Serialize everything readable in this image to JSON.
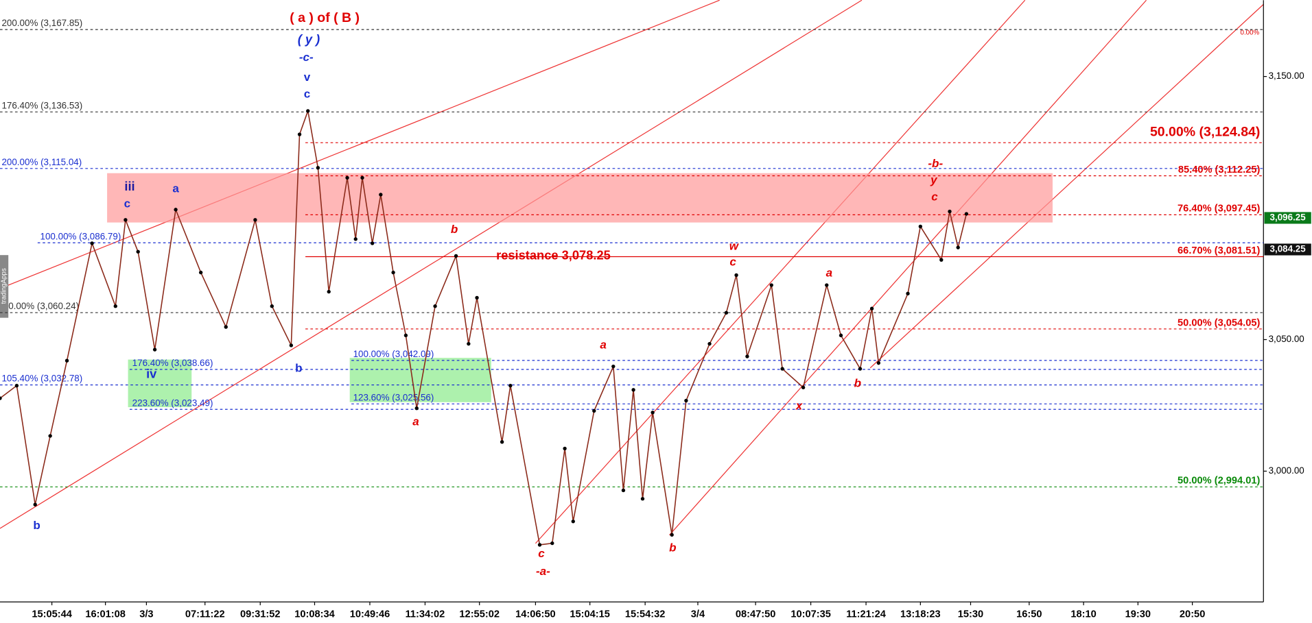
{
  "chart_data": {
    "type": "line",
    "sidebar_text": "tradingApps",
    "series": [
      {
        "name": "Price",
        "color": "#8b2a1a",
        "x": [
          0,
          2,
          4.2,
          6,
          8,
          11,
          13.8,
          15,
          16.5,
          18.5,
          21,
          24,
          27,
          30.5,
          32.5,
          34.8,
          35.8,
          36.8,
          38,
          39.3,
          41.5,
          42.5,
          43.3,
          44.5,
          45.5,
          47,
          48.5,
          49.8,
          52,
          54.5,
          56,
          57,
          60,
          61,
          64.5,
          66,
          67.5,
          68.5,
          71,
          73.3,
          74.5,
          75.7,
          76.8,
          78,
          80.3,
          82,
          84.8,
          86.8,
          88,
          89.3,
          92.2,
          93.5,
          96,
          98.8,
          100.5,
          102.8,
          104.2,
          105,
          108.5,
          110,
          112.5,
          113.5,
          114.5,
          115.5
        ],
        "values": [
          3027.7,
          3032.5,
          2987.3,
          3013.4,
          3042,
          3086.6,
          3062.7,
          3095.5,
          3083.4,
          3046.2,
          3099.4,
          3075.5,
          3054.8,
          3095.5,
          3062.7,
          3047.8,
          3128,
          3136.9,
          3115.3,
          3068.2,
          3111.5,
          3088.2,
          3111.5,
          3086.6,
          3105.1,
          3075.5,
          3051.6,
          3023.9,
          3062.7,
          3081.8,
          3048.4,
          3065.9,
          3011.1,
          3032.5,
          2972,
          2972.6,
          3008.6,
          2980.9,
          3022.9,
          3039.8,
          2992.7,
          3030.9,
          2989.5,
          3022.3,
          2975.8,
          3026.8,
          3048.4,
          3060.2,
          3074.5,
          3043.6,
          3070.7,
          3038.9,
          3031.8,
          3070.7,
          3051.6,
          3038.9,
          3061.8,
          3041.1,
          3067.5,
          3093,
          3080.3,
          3098.7,
          3085,
          3097.8
        ]
      }
    ],
    "xlim": [
      0,
      151
    ],
    "xticks": [
      {
        "value": 6.2,
        "label": "15:05:44"
      },
      {
        "value": 12.6,
        "label": "16:01:08"
      },
      {
        "value": 17.5,
        "label": "3/3"
      },
      {
        "value": 24.5,
        "label": "07:11:22"
      },
      {
        "value": 31.1,
        "label": "09:31:52"
      },
      {
        "value": 37.6,
        "label": "10:08:34"
      },
      {
        "value": 44.2,
        "label": "10:49:46"
      },
      {
        "value": 50.8,
        "label": "11:34:02"
      },
      {
        "value": 57.3,
        "label": "12:55:02"
      },
      {
        "value": 64,
        "label": "14:06:50"
      },
      {
        "value": 70.5,
        "label": "15:04:15"
      },
      {
        "value": 77.1,
        "label": "15:54:32"
      },
      {
        "value": 83.4,
        "label": "3/4"
      },
      {
        "value": 90.3,
        "label": "08:47:50"
      },
      {
        "value": 96.9,
        "label": "10:07:35"
      },
      {
        "value": 103.5,
        "label": "11:21:24"
      },
      {
        "value": 110,
        "label": "13:18:23"
      },
      {
        "value": 116,
        "label": "15:30"
      },
      {
        "value": 123,
        "label": "16:50"
      },
      {
        "value": 129.5,
        "label": "18:10"
      },
      {
        "value": 136,
        "label": "19:30"
      },
      {
        "value": 142.5,
        "label": "20:50"
      }
    ],
    "ylim": [
      2950.3,
      3179
    ],
    "yticks": [
      {
        "value": 3000,
        "label": "3,000.00"
      },
      {
        "value": 3050,
        "label": "3,050.00"
      },
      {
        "value": 3150,
        "label": "3,150.00"
      }
    ],
    "levels": [
      {
        "label": "200.00% (3,167.85)",
        "value": 3167.85,
        "color": "#333333"
      },
      {
        "label": "176.40% (3,136.53)",
        "value": 3136.53,
        "color": "#333333"
      },
      {
        "label": "0.00% (3,060.24)",
        "value": 3060.24,
        "color": "#333333"
      },
      {
        "label": "200.00% (3,115.04)",
        "value": 3115.04,
        "color": "#1a2fd0"
      },
      {
        "label": "100.00% (3,086.79)",
        "value": 3086.79,
        "color": "#1a2fd0"
      },
      {
        "label": "105.40% (3,032.78)",
        "value": 3032.78,
        "color": "#1a2fd0"
      },
      {
        "label": "176.40% (3,038.66)",
        "value": 3038.66,
        "color": "#1a2fd0"
      },
      {
        "label": "223.60% (3,023.49)",
        "value": 3023.49,
        "color": "#1a2fd0"
      },
      {
        "label": "100.00% (3,042.09)",
        "value": 3042.09,
        "color": "#1a2fd0"
      },
      {
        "label": "123.60% (3,025.56)",
        "value": 3025.56,
        "color": "#1a2fd0"
      },
      {
        "label": "50.00% (3,124.84)",
        "value": 3124.84,
        "color": "#e00000"
      },
      {
        "label": "85.40% (3,112.25)",
        "value": 3112.25,
        "color": "#e00000"
      },
      {
        "label": "76.40% (3,097.45)",
        "value": 3097.45,
        "color": "#e00000"
      },
      {
        "label": "66.70% (3,081.51)",
        "value": 3081.51,
        "color": "#e00000"
      },
      {
        "label": "50.00% (3,054.05)",
        "value": 3054.05,
        "color": "#e00000"
      },
      {
        "label": "50.00% (2,994.01)",
        "value": 2994.01,
        "color": "#0a8a0a"
      }
    ],
    "resistance": {
      "label": "resistance 3,078.25",
      "value": 3078.25
    },
    "corner_note": "0.00%",
    "price_tags": [
      {
        "value": 3096.25,
        "label": "3,096.25",
        "color": "#0a7a1a"
      },
      {
        "value": 3084.25,
        "label": "3,084.25",
        "color": "#111111"
      }
    ],
    "wave_labels": [
      {
        "text": "( a ) of ( B )",
        "color": "#e00000"
      },
      {
        "text": "( y )",
        "color": "#1a2fd0"
      },
      {
        "text": "-c-",
        "color": "#1a2fd0"
      },
      {
        "text": "v",
        "color": "#1a2fd0"
      },
      {
        "text": "c",
        "color": "#1a2fd0"
      },
      {
        "text": "iii",
        "color": "#1a1aa0"
      },
      {
        "text": "c",
        "color": "#1a2fd0"
      },
      {
        "text": "a",
        "color": "#1a2fd0"
      },
      {
        "text": "iv",
        "color": "#1a2fd0"
      },
      {
        "text": "b",
        "color": "#1a2fd0"
      },
      {
        "text": "b",
        "color": "#1a2fd0"
      },
      {
        "text": "a",
        "color": "#e00000"
      },
      {
        "text": "b",
        "color": "#e00000"
      },
      {
        "text": "c",
        "color": "#e00000"
      },
      {
        "text": "-a-",
        "color": "#e00000"
      },
      {
        "text": "a",
        "color": "#e00000"
      },
      {
        "text": "b",
        "color": "#e00000"
      },
      {
        "text": "w",
        "color": "#e00000"
      },
      {
        "text": "c",
        "color": "#e00000"
      },
      {
        "text": "x",
        "color": "#e00000"
      },
      {
        "text": "a",
        "color": "#e00000"
      },
      {
        "text": "b",
        "color": "#e00000"
      },
      {
        "text": "-b-",
        "color": "#e00000"
      },
      {
        "text": "y",
        "color": "#e00000"
      },
      {
        "text": "c",
        "color": "#e00000"
      }
    ]
  }
}
